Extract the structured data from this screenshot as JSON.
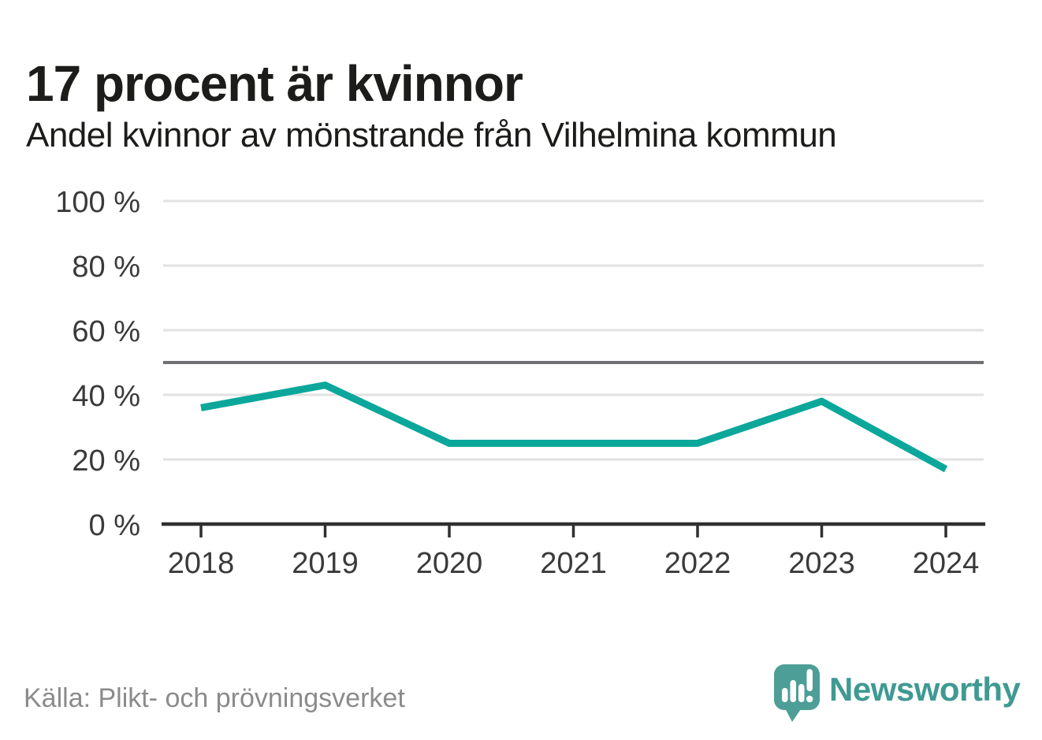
{
  "header": {
    "title": "17 procent är kvinnor",
    "subtitle": "Andel kvinnor av mönstrande från Vilhelmina kommun"
  },
  "chart_data": {
    "type": "line",
    "x": [
      "2018",
      "2019",
      "2020",
      "2021",
      "2022",
      "2023",
      "2024"
    ],
    "series": [
      {
        "name": "Andel kvinnor av mönstrande",
        "color": "#0ca79b",
        "values": [
          36,
          43,
          25,
          25,
          25,
          38,
          17
        ]
      }
    ],
    "title": "17 procent är kvinnor",
    "subtitle": "Andel kvinnor av mönstrande från Vilhelmina kommun",
    "xlabel": "",
    "ylabel": "",
    "ylim": [
      0,
      100
    ],
    "y_ticks": [
      0,
      20,
      40,
      60,
      80,
      100
    ],
    "y_tick_suffix": " %",
    "reference_line": 50,
    "grid": true,
    "legend": false
  },
  "footer": {
    "source": "Källa: Plikt- och prövningsverket",
    "brand_name": "Newsworthy"
  },
  "colors": {
    "line": "#0ca79b",
    "gridline": "#e2e2e2",
    "reference_line": "#6f6f74",
    "axis": "#2f2f2f",
    "tick_label": "#3a3a3a",
    "title_text": "#1c1c1a",
    "source_text": "#8b8b8b",
    "brand_teal": "#4d9e97"
  }
}
